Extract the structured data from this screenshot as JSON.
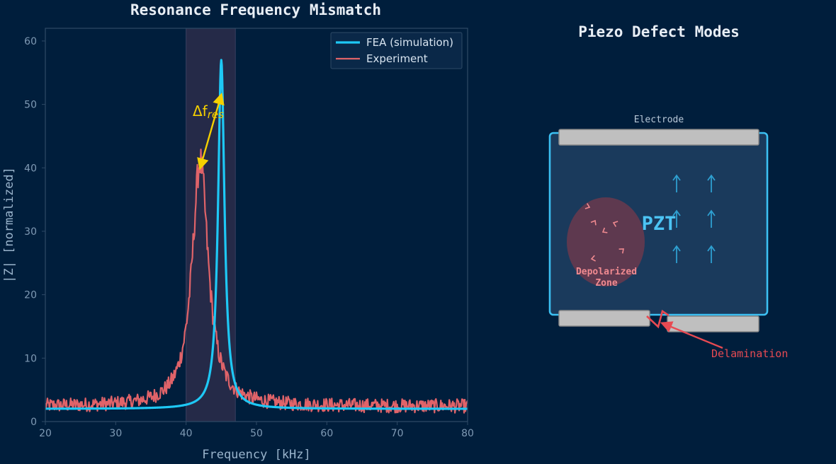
{
  "chart_data": [
    {
      "type": "line",
      "title": "Resonance Frequency Mismatch",
      "xlabel": "Frequency [kHz]",
      "ylabel": "|Z| [normalized]",
      "xlim": [
        20,
        80
      ],
      "ylim": [
        0,
        62
      ],
      "xticks": [
        "20",
        "30",
        "40",
        "50",
        "60",
        "70",
        "80"
      ],
      "yticks": [
        "0",
        "10",
        "20",
        "30",
        "40",
        "50",
        "60"
      ],
      "highlight_band": [
        40,
        47
      ],
      "legend_position": "top-right",
      "annotation": {
        "text_main": "Δf",
        "text_sub": "res",
        "from": {
          "x": 42,
          "y": 40
        },
        "to": {
          "x": 45,
          "y": 51.5
        }
      },
      "series": [
        {
          "name": "FEA (simulation)",
          "color": "#1ec8f5",
          "model": "lorentzian",
          "peak_x": 45,
          "peak_y": 57,
          "half_width": 0.55,
          "baseline": 2,
          "baseline_slope": 0.005
        },
        {
          "name": "Experiment",
          "color": "#e06369",
          "model": "lorentzian_noisy",
          "peak_x": 42,
          "peak_y": 41,
          "half_width": 1.4,
          "baseline": 2.4,
          "noise_amplitude": 1.1
        }
      ]
    },
    {
      "type": "diagram",
      "title": "Piezo Defect Modes",
      "labels": {
        "electrode": "Electrode",
        "material": "PZT",
        "zone_line1": "Depolarized",
        "zone_line2": "Zone",
        "delamination": "Delamination"
      },
      "colors": {
        "frame": "#3cc0f2",
        "body": "#1a3a5c",
        "electrode": "#bfbfbf",
        "zone": "#6b3a4c",
        "zone_text": "#f08a90",
        "arrows": "#2e9fd0",
        "delamination": "#e84a52"
      }
    }
  ]
}
